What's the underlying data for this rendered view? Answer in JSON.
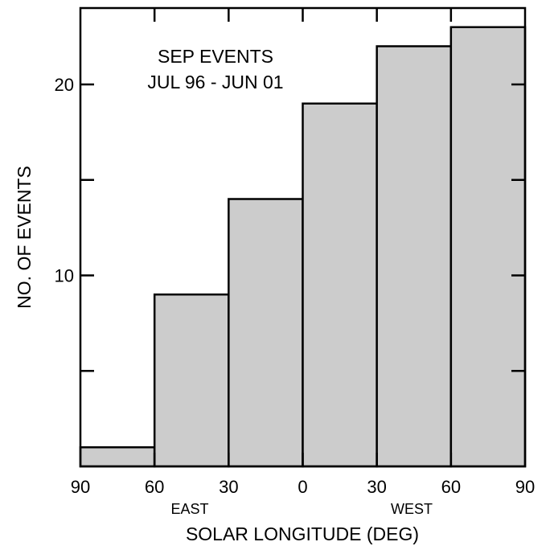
{
  "chart_data": {
    "type": "bar",
    "title_lines": [
      "SEP EVENTS",
      "JUL 96 - JUN 01"
    ],
    "xlabel": "SOLAR LONGITUDE (DEG)",
    "ylabel": "NO. OF EVENTS",
    "x_direction_labels": {
      "east": "EAST",
      "west": "WEST"
    },
    "x_ticks": [
      "90",
      "60",
      "30",
      "0",
      "30",
      "60",
      "90"
    ],
    "x_tick_positions": [
      -90,
      -60,
      -30,
      0,
      30,
      60,
      90
    ],
    "xlim": [
      -90,
      90
    ],
    "ylim": [
      0,
      24
    ],
    "y_major_ticks": [
      10,
      20
    ],
    "y_minor_ticks": [
      5,
      15
    ],
    "y_tick_labels": [
      "10",
      "20"
    ],
    "bins": [
      {
        "range": [
          -90,
          -60
        ],
        "value": 1
      },
      {
        "range": [
          -60,
          -30
        ],
        "value": 9
      },
      {
        "range": [
          -30,
          0
        ],
        "value": 14
      },
      {
        "range": [
          0,
          30
        ],
        "value": 19
      },
      {
        "range": [
          30,
          60
        ],
        "value": 22
      },
      {
        "range": [
          60,
          90
        ],
        "value": 23
      }
    ],
    "bar_fill": "#cccccc",
    "grid": false
  }
}
